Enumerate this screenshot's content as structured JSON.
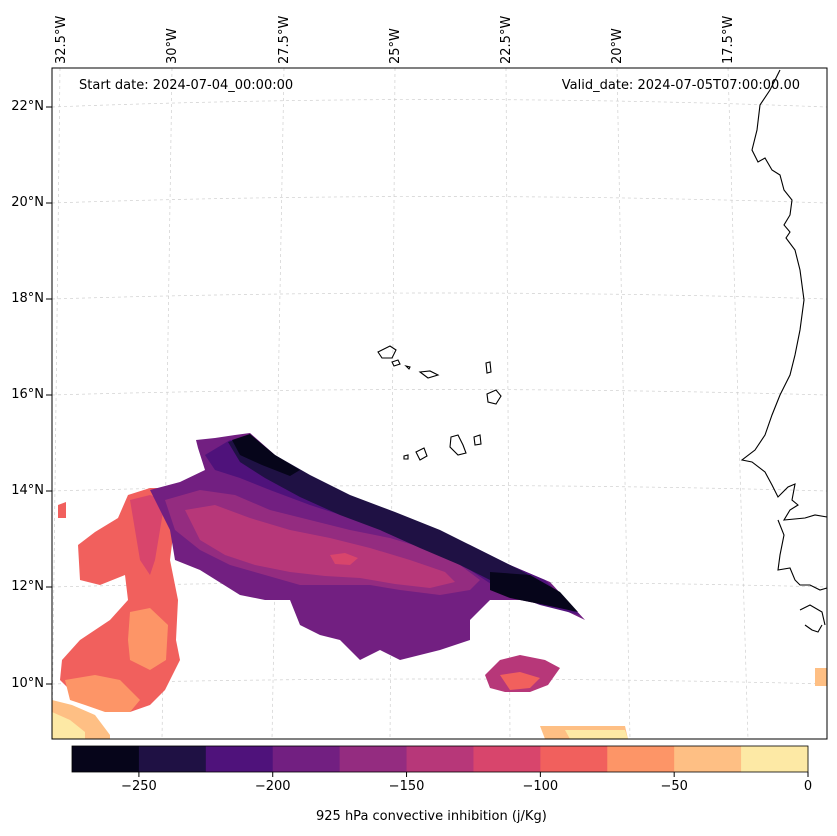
{
  "map": {
    "annotations": {
      "start_date": "Start date: 2024-07-04_00:00:00",
      "valid_date": "Valid_date: 2024-07-05T07:00:00.00"
    },
    "lon_labels": [
      "32.5°W",
      "30°W",
      "27.5°W",
      "25°W",
      "22.5°W",
      "20°W",
      "17.5°W"
    ],
    "lat_labels": [
      "22°N",
      "20°N",
      "18°N",
      "16°N",
      "14°N",
      "12°N",
      "10°N"
    ],
    "variable": "925 hPa convective inhibition"
  },
  "colorbar": {
    "label": "925 hPa convective inhibition (j/Kg)",
    "bounds": [
      -275,
      -250,
      -225,
      -200,
      -175,
      -150,
      -125,
      -100,
      -75,
      -50,
      -25,
      0
    ],
    "colors": [
      "#06051a",
      "#1f1144",
      "#4f127b",
      "#721f81",
      "#942c80",
      "#b73779",
      "#d8456c",
      "#f1605d",
      "#fd9567",
      "#febf84",
      "#fde9a5"
    ],
    "tick_labels": [
      "−250",
      "−200",
      "−150",
      "−100",
      "−50",
      "0"
    ]
  },
  "colors": {
    "gridline": "#c8c8c8",
    "coastline": "#000000",
    "frame": "#000000"
  }
}
